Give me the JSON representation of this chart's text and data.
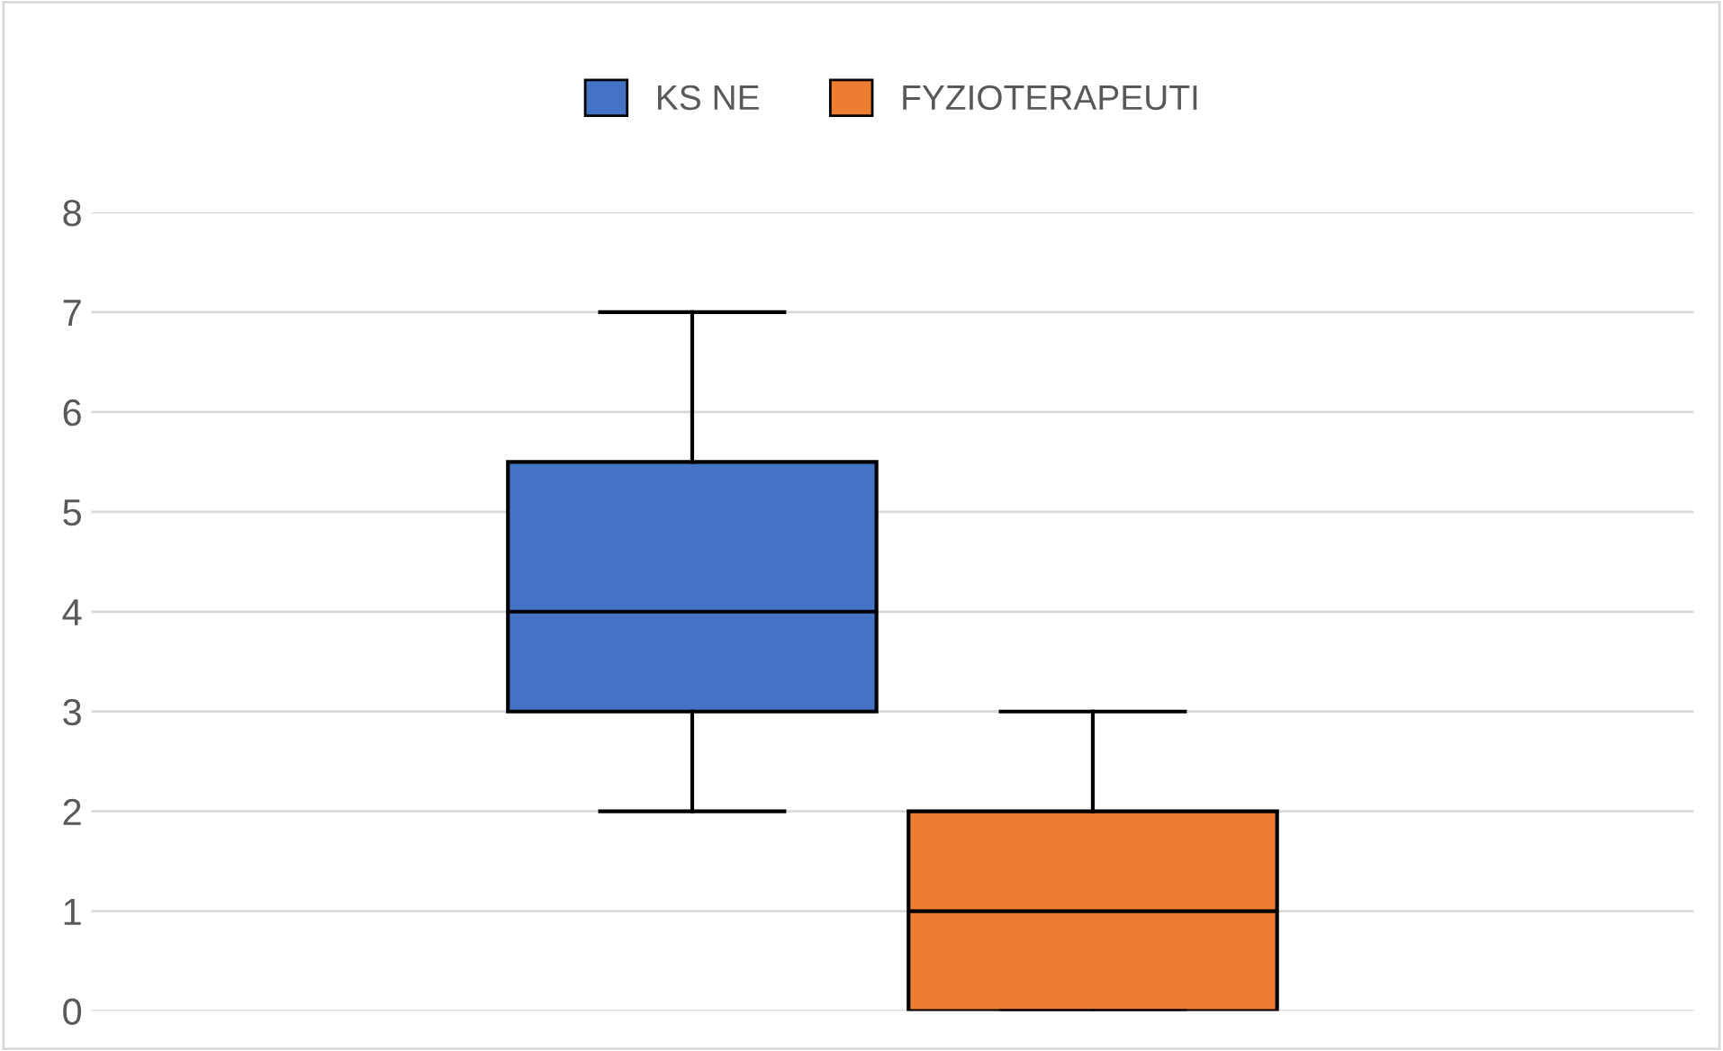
{
  "chart_data": {
    "type": "box",
    "categories": [
      null
    ],
    "series": [
      {
        "name": "KS NE",
        "color": "#4472c4",
        "boxes": [
          {
            "low": 2,
            "q1": 3,
            "median": 4,
            "q3": 5.5,
            "high": 7
          }
        ]
      },
      {
        "name": "FYZIOTERAPEUTI",
        "color": "#ed7d31",
        "boxes": [
          {
            "low": 0,
            "q1": 0,
            "median": 1,
            "q3": 2,
            "high": 3
          }
        ]
      }
    ],
    "ylim": [
      0,
      8
    ],
    "yticks": [
      0,
      1,
      2,
      3,
      4,
      5,
      6,
      7,
      8
    ],
    "grid": "y",
    "legend": "top",
    "tick_labels": "y"
  }
}
